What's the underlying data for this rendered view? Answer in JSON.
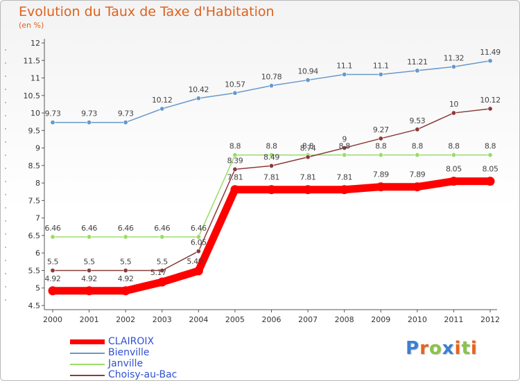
{
  "chart_data": {
    "type": "line",
    "title": "Evolution du Taux de Taxe d'Habitation",
    "unit_label": "(en %)",
    "x": [
      "2000",
      "2001",
      "2002",
      "2003",
      "2004",
      "2005",
      "2006",
      "2007",
      "2008",
      "2009",
      "2010",
      "2011",
      "2012"
    ],
    "ylim": [
      4.5,
      12
    ],
    "y_ticks": [
      "4.5",
      "5",
      "5.5",
      "6",
      "6.5",
      "7",
      "7.5",
      "8",
      "8.5",
      "9",
      "9.5",
      "10",
      "10.5",
      "11",
      "11.5",
      "12"
    ],
    "grid": false,
    "legend_position": "bottom-left",
    "series": [
      {
        "name": "CLAIROIX",
        "color": "#ff0000",
        "values": [
          4.92,
          4.92,
          4.92,
          5.17,
          5.49,
          7.81,
          7.81,
          7.81,
          7.81,
          7.89,
          7.89,
          8.05,
          8.05
        ],
        "labels": [
          "4.92",
          "4.92",
          "4.92",
          "",
          "",
          "7.81",
          "7.81",
          "7.81",
          "7.81",
          "7.89",
          "7.89",
          "8.05",
          "8.05"
        ]
      },
      {
        "name": "Bienville",
        "color": "#6699cc",
        "values": [
          9.73,
          9.73,
          9.73,
          10.12,
          10.42,
          10.57,
          10.78,
          10.94,
          11.1,
          11.1,
          11.21,
          11.32,
          11.49
        ],
        "labels": [
          "9.73",
          "9.73",
          "9.73",
          "10.12",
          "10.42",
          "10.57",
          "10.78",
          "10.94",
          "11.1",
          "11.1",
          "11.21",
          "11.32",
          "11.49"
        ]
      },
      {
        "name": "Janville",
        "color": "#99dd66",
        "values": [
          6.46,
          6.46,
          6.46,
          6.46,
          6.46,
          8.8,
          8.8,
          8.8,
          8.8,
          8.8,
          8.8,
          8.8,
          8.8
        ],
        "labels": [
          "6.46",
          "6.46",
          "6.46",
          "6.46",
          "6.46",
          "8.8",
          "8.8",
          "8.8",
          "8.8",
          "8.8",
          "8.8",
          "8.8",
          "8.8"
        ]
      },
      {
        "name": "Choisy-au-Bac",
        "color": "#8b3a3a",
        "values": [
          5.5,
          5.5,
          5.5,
          5.5,
          6.05,
          8.39,
          8.49,
          8.74,
          9.0,
          9.27,
          9.53,
          10.0,
          10.12
        ],
        "labels": [
          "5.5",
          "5.5",
          "5.5",
          "5.5",
          "6.05",
          "8.39",
          "8.49",
          "8.74",
          "9",
          "9.27",
          "9.53",
          "10",
          "10.12"
        ]
      }
    ],
    "extra_labels": [
      {
        "series": 0,
        "index": 3,
        "text": "5.17"
      },
      {
        "series": 0,
        "index": 4,
        "text": "5.49"
      }
    ]
  },
  "logo": {
    "letters": [
      "P",
      "r",
      "o",
      "x",
      "i",
      "t",
      "i"
    ],
    "colors": [
      "#3a7fd5",
      "#e8641b",
      "#8bc34a",
      "#3a7fd5",
      "#e8641b",
      "#8bc34a",
      "#e8641b"
    ]
  }
}
